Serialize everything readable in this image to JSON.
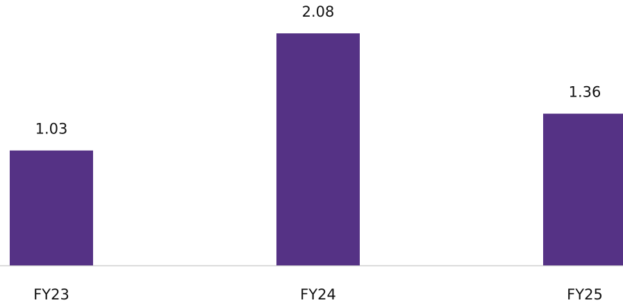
{
  "chart_data": {
    "type": "bar",
    "categories": [
      "FY23",
      "FY24",
      "FY25"
    ],
    "values": [
      1.03,
      2.08,
      1.36
    ],
    "color": "#553285",
    "data_labels": true
  }
}
